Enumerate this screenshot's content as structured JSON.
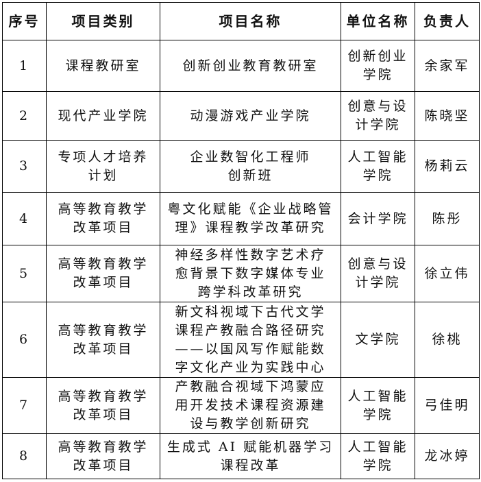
{
  "headers": [
    "序号",
    "项目类别",
    "项目名称",
    "单位名称",
    "负责人"
  ],
  "rows": [
    {
      "no": "1",
      "category": "课程教研室",
      "name": "创新创业教育教研室",
      "unit": "创新创业\n学院",
      "leader": "余家军"
    },
    {
      "no": "2",
      "category": "现代产业学院",
      "name": "动漫游戏产业学院",
      "unit": "创意与设\n计学院",
      "leader": "陈晓坚"
    },
    {
      "no": "3",
      "category": "专项人才培养\n计划",
      "name": "企业数智化工程师\n创新班",
      "unit": "人工智能\n学院",
      "leader": "杨莉云"
    },
    {
      "no": "4",
      "category": "高等教育教学\n改革项目",
      "name": "粤文化赋能《企业战略管\n理》课程教学改革研究",
      "unit": "会计学院",
      "leader": "陈彤"
    },
    {
      "no": "5",
      "category": "高等教育教学\n改革项目",
      "name": "神经多样性数字艺术疗\n愈背景下数字媒体专业\n跨学科改革研究",
      "unit": "创意与设\n计学院",
      "leader": "徐立伟"
    },
    {
      "no": "6",
      "category": "高等教育教学\n改革项目",
      "name": "新文科视域下古代文学\n课程产教融合路径研究\n——以国风写作赋能数\n字文化产业为实践中心",
      "unit": "文学院",
      "leader": "徐桃"
    },
    {
      "no": "7",
      "category": "高等教育教学\n改革项目",
      "name": "产教融合视域下鸿蒙应\n用开发技术课程资源建\n设与教学创新研究",
      "unit": "人工智能\n学院",
      "leader": "弓佳明"
    },
    {
      "no": "8",
      "category": "高等教育教学\n改革项目",
      "name": "生成式 AI 赋能机器学习\n课程改革",
      "unit": "人工智能\n学院",
      "leader": "龙冰婷"
    }
  ]
}
